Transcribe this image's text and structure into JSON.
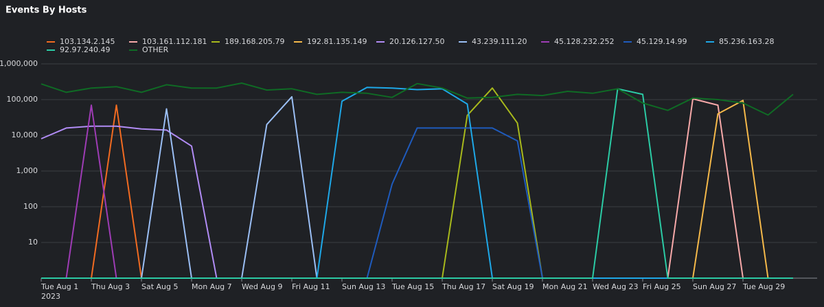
{
  "chart_data": {
    "type": "line",
    "title": "Events By Hosts",
    "categories": [
      "Tue Aug 1",
      null,
      "Thu Aug 3",
      null,
      "Sat Aug 5",
      null,
      "Mon Aug 7",
      null,
      "Wed Aug 9",
      null,
      "Fri Aug 11",
      null,
      "Sun Aug 13",
      null,
      "Tue Aug 15",
      null,
      "Thu Aug 17",
      null,
      "Sat Aug 19",
      null,
      "Mon Aug 21",
      null,
      "Wed Aug 23",
      null,
      "Fri Aug 25",
      null,
      "Sun Aug 27",
      null,
      "Tue Aug 29",
      null,
      null
    ],
    "x_year": "2023",
    "log_scale": true,
    "grid": true,
    "ylim": [
      1,
      1000000
    ],
    "yticks": [
      {
        "value": 1000000,
        "label": "1,000,000"
      },
      {
        "value": 100000,
        "label": "100,000"
      },
      {
        "value": 10000,
        "label": "10,000"
      },
      {
        "value": 1000,
        "label": "1,000"
      },
      100,
      10
    ],
    "series": [
      {
        "name": "103.134.2.145",
        "color": "#f26b21",
        "values": [
          0,
          0,
          0,
          70000,
          0,
          0,
          0,
          0,
          0,
          0,
          0,
          0,
          0,
          0,
          0,
          0,
          0,
          0,
          0,
          0,
          0,
          0,
          0,
          0,
          0,
          0,
          0,
          0,
          0,
          0,
          0
        ]
      },
      {
        "name": "103.161.112.181",
        "color": "#f7a9a9",
        "values": [
          0,
          0,
          0,
          0,
          0,
          0,
          0,
          0,
          0,
          0,
          0,
          0,
          0,
          0,
          0,
          0,
          0,
          0,
          0,
          0,
          0,
          0,
          0,
          0,
          0,
          0,
          105000,
          70000,
          0,
          0,
          0
        ]
      },
      {
        "name": "189.168.205.79",
        "color": "#a8b91c",
        "values": [
          0,
          0,
          0,
          0,
          0,
          0,
          0,
          0,
          0,
          0,
          0,
          0,
          0,
          0,
          0,
          0,
          0,
          36000,
          210000,
          22000,
          0,
          0,
          0,
          0,
          0,
          0,
          0,
          0,
          0,
          0,
          0
        ]
      },
      {
        "name": "192.81.135.149",
        "color": "#f5b94a",
        "values": [
          0,
          0,
          0,
          0,
          0,
          0,
          0,
          0,
          0,
          0,
          0,
          0,
          0,
          0,
          0,
          0,
          0,
          0,
          0,
          0,
          0,
          0,
          0,
          0,
          0,
          0,
          0,
          40000,
          95000,
          0,
          0
        ]
      },
      {
        "name": "20.126.127.50",
        "color": "#b18cf5",
        "values": [
          8000,
          16000,
          18000,
          18000,
          15000,
          14000,
          5000,
          0,
          0,
          0,
          0,
          0,
          0,
          0,
          0,
          0,
          0,
          0,
          0,
          0,
          0,
          0,
          0,
          0,
          0,
          0,
          0,
          0,
          0,
          0,
          0
        ]
      },
      {
        "name": "43.239.111.20",
        "color": "#9bbff5",
        "values": [
          0,
          0,
          0,
          0,
          0,
          55000,
          0,
          0,
          0,
          20000,
          120000,
          0,
          0,
          0,
          0,
          0,
          0,
          0,
          0,
          0,
          0,
          0,
          0,
          0,
          0,
          0,
          0,
          0,
          0,
          0,
          0
        ]
      },
      {
        "name": "45.128.232.252",
        "color": "#9e3cb5",
        "values": [
          0,
          0,
          70000,
          0,
          0,
          0,
          0,
          0,
          0,
          0,
          0,
          0,
          0,
          0,
          0,
          0,
          0,
          0,
          0,
          0,
          0,
          0,
          0,
          0,
          0,
          0,
          0,
          0,
          0,
          0,
          0
        ]
      },
      {
        "name": "45.129.14.99",
        "color": "#1f5bbd",
        "values": [
          0,
          0,
          0,
          0,
          0,
          0,
          0,
          0,
          0,
          0,
          0,
          0,
          0,
          0,
          430,
          16000,
          16000,
          16000,
          16000,
          7000,
          0,
          0,
          0,
          0,
          0,
          0,
          0,
          0,
          0,
          0,
          0
        ]
      },
      {
        "name": "85.236.163.28",
        "color": "#1ea8e8",
        "values": [
          0,
          0,
          0,
          0,
          0,
          0,
          0,
          0,
          0,
          0,
          0,
          0,
          90000,
          220000,
          210000,
          190000,
          200000,
          75000,
          0,
          0,
          0,
          0,
          0,
          0,
          0,
          0,
          0,
          0,
          0,
          0,
          0
        ]
      },
      {
        "name": "92.97.240.49",
        "color": "#2bcba5",
        "values": [
          0,
          0,
          0,
          0,
          0,
          0,
          0,
          0,
          0,
          0,
          0,
          0,
          0,
          0,
          0,
          0,
          0,
          0,
          0,
          0,
          0,
          0,
          0,
          200000,
          140000,
          0,
          0,
          0,
          0,
          0,
          0
        ]
      },
      {
        "name": "OTHER",
        "color": "#0f6b25",
        "values": [
          275000,
          160000,
          210000,
          230000,
          160000,
          260000,
          210000,
          210000,
          290000,
          185000,
          200000,
          140000,
          160000,
          150000,
          115000,
          280000,
          210000,
          110000,
          115000,
          140000,
          130000,
          170000,
          150000,
          200000,
          80000,
          50000,
          110000,
          100000,
          80000,
          37000,
          140000
        ]
      }
    ]
  }
}
